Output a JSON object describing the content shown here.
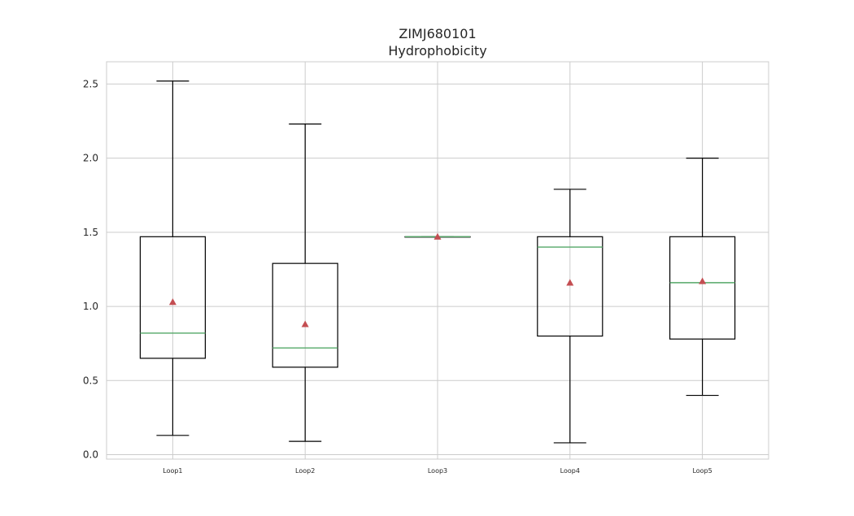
{
  "chart_data": {
    "type": "boxplot",
    "title": "ZIMJ680101",
    "subtitle": "Hydrophobicity",
    "xlabel": "",
    "ylabel": "",
    "ylim": [
      -0.03,
      2.65
    ],
    "yticks": [
      "0.0",
      "0.5",
      "1.0",
      "1.5",
      "2.0",
      "2.5"
    ],
    "grid": true,
    "categories": [
      "Loop1",
      "Loop2",
      "Loop3",
      "Loop4",
      "Loop5"
    ],
    "boxes": [
      {
        "label": "Loop1",
        "whislo": 0.13,
        "q1": 0.65,
        "med": 0.82,
        "q3": 1.47,
        "whishi": 2.52,
        "mean": 1.03
      },
      {
        "label": "Loop2",
        "whislo": 0.09,
        "q1": 0.59,
        "med": 0.72,
        "q3": 1.29,
        "whishi": 2.23,
        "mean": 0.88
      },
      {
        "label": "Loop3",
        "whislo": 1.47,
        "q1": 1.47,
        "med": 1.47,
        "q3": 1.47,
        "whishi": 1.47,
        "mean": 1.47
      },
      {
        "label": "Loop4",
        "whislo": 0.08,
        "q1": 0.8,
        "med": 1.4,
        "q3": 1.47,
        "whishi": 1.79,
        "mean": 1.16
      },
      {
        "label": "Loop5",
        "whislo": 0.4,
        "q1": 0.78,
        "med": 1.16,
        "q3": 1.47,
        "whishi": 2.0,
        "mean": 1.17
      }
    ],
    "colors": {
      "box": "#000000",
      "median": "#55a868",
      "mean": "#c44e52",
      "grid": "#cccccc",
      "frame": "#cccccc"
    }
  }
}
